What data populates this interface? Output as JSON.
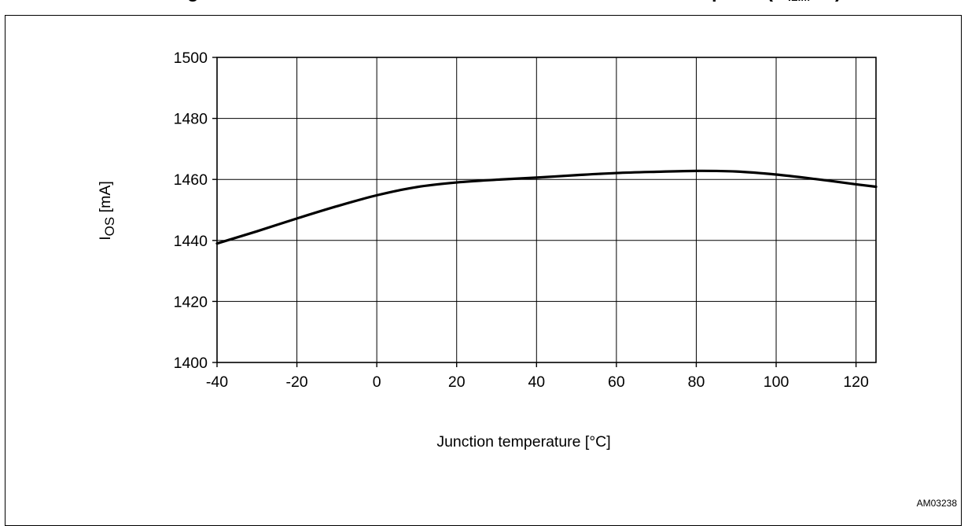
{
  "chart_data": {
    "type": "line",
    "title": "",
    "xlabel": "Junction temperature [°C]",
    "ylabel": "I",
    "ylabel_sub": "OS",
    "ylabel_unit": "[mA]",
    "xlim": [
      -40,
      125
    ],
    "ylim": [
      1400,
      1500
    ],
    "x_ticks": [
      -40,
      -20,
      0,
      20,
      40,
      60,
      80,
      100,
      120
    ],
    "y_ticks": [
      1400,
      1420,
      1440,
      1460,
      1480,
      1500
    ],
    "grid": true,
    "series": [
      {
        "x": [
          -40,
          -30,
          -20,
          -10,
          0,
          10,
          20,
          30,
          40,
          50,
          60,
          70,
          80,
          90,
          100,
          110,
          120,
          125
        ],
        "y": [
          1439,
          1443,
          1447.2,
          1451.2,
          1454.8,
          1457.5,
          1459,
          1459.9,
          1460.6,
          1461.4,
          1462.1,
          1462.5,
          1462.8,
          1462.6,
          1461.6,
          1460.1,
          1458.4,
          1457.6
        ],
        "color": "#000000"
      }
    ]
  },
  "figure_id": "AM03238"
}
